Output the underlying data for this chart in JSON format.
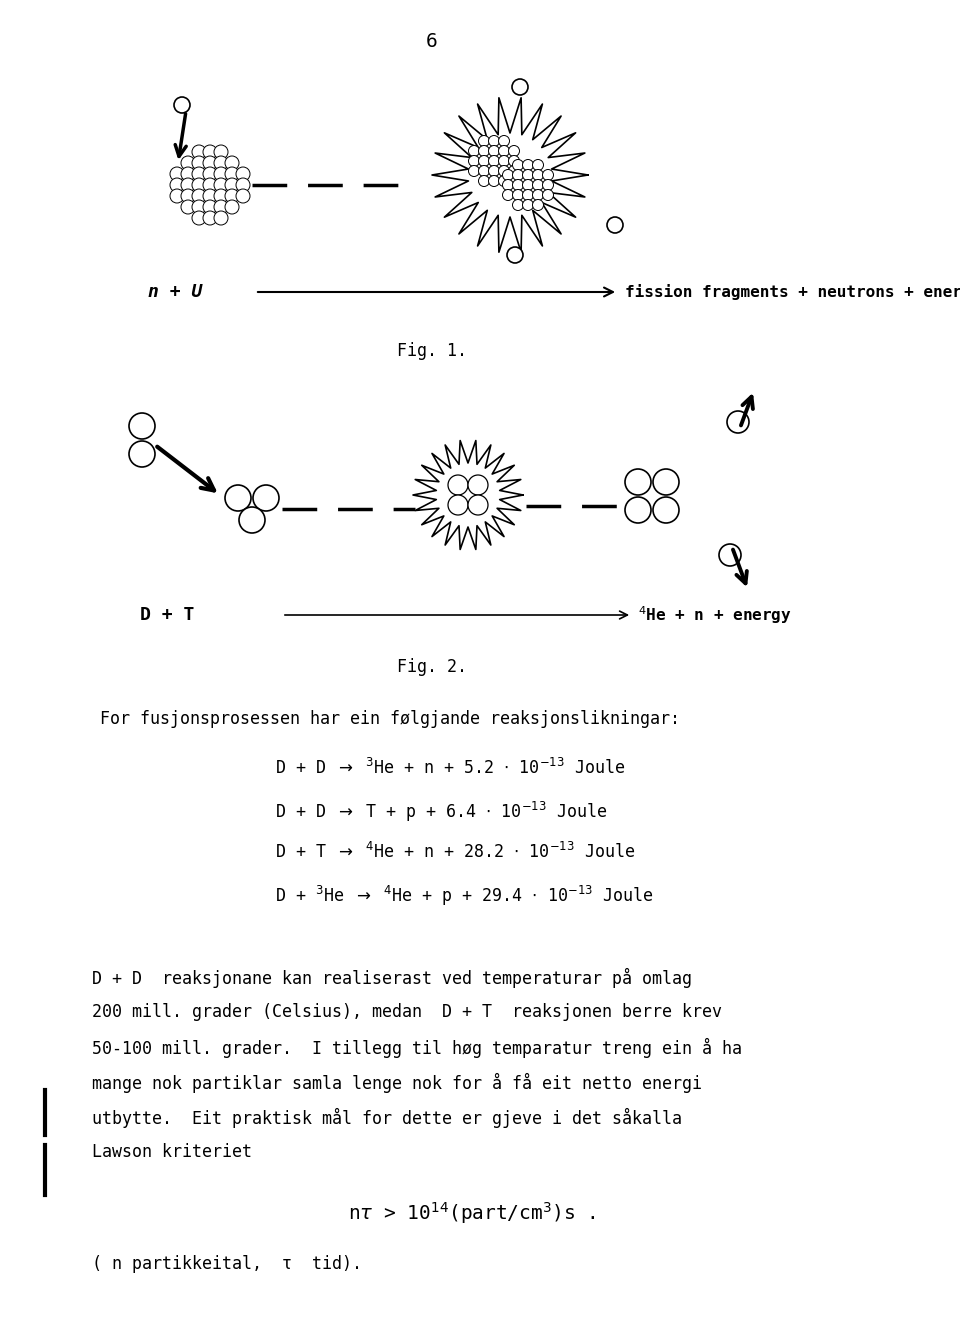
{
  "page_number": "6",
  "bg_color": "#ffffff",
  "fig1_label": "Fig. 1.",
  "fig2_label": "Fig. 2.",
  "fig1_eq_left": "n + U",
  "fig1_eq_right": "fission fragments + neutrons + energy",
  "fig2_eq_left": "D + T",
  "fig2_eq_right": "$^{4}$He + n + energy",
  "intro_text": "For fusjonsprosessen har ein følgjande reaksjonslikningar:",
  "body_lines": [
    "D + D  reaksjonane kan realiserast ved temperaturar på omlag",
    "200 mill. grader (Celsius), medan  D + T  reaksjonen berre krev",
    "50-100 mill. grader.  I tillegg til høg temparatur treng ein å ha",
    "mange nok partiklar samla lenge nok for å få eit netto energi",
    "utbytte.  Eit praktisk mål for dette er gjeve i det såkalla",
    "Lawson kriteriet"
  ],
  "footnote": "( n partikkeital,  τ  tid).",
  "text_color": "#000000"
}
